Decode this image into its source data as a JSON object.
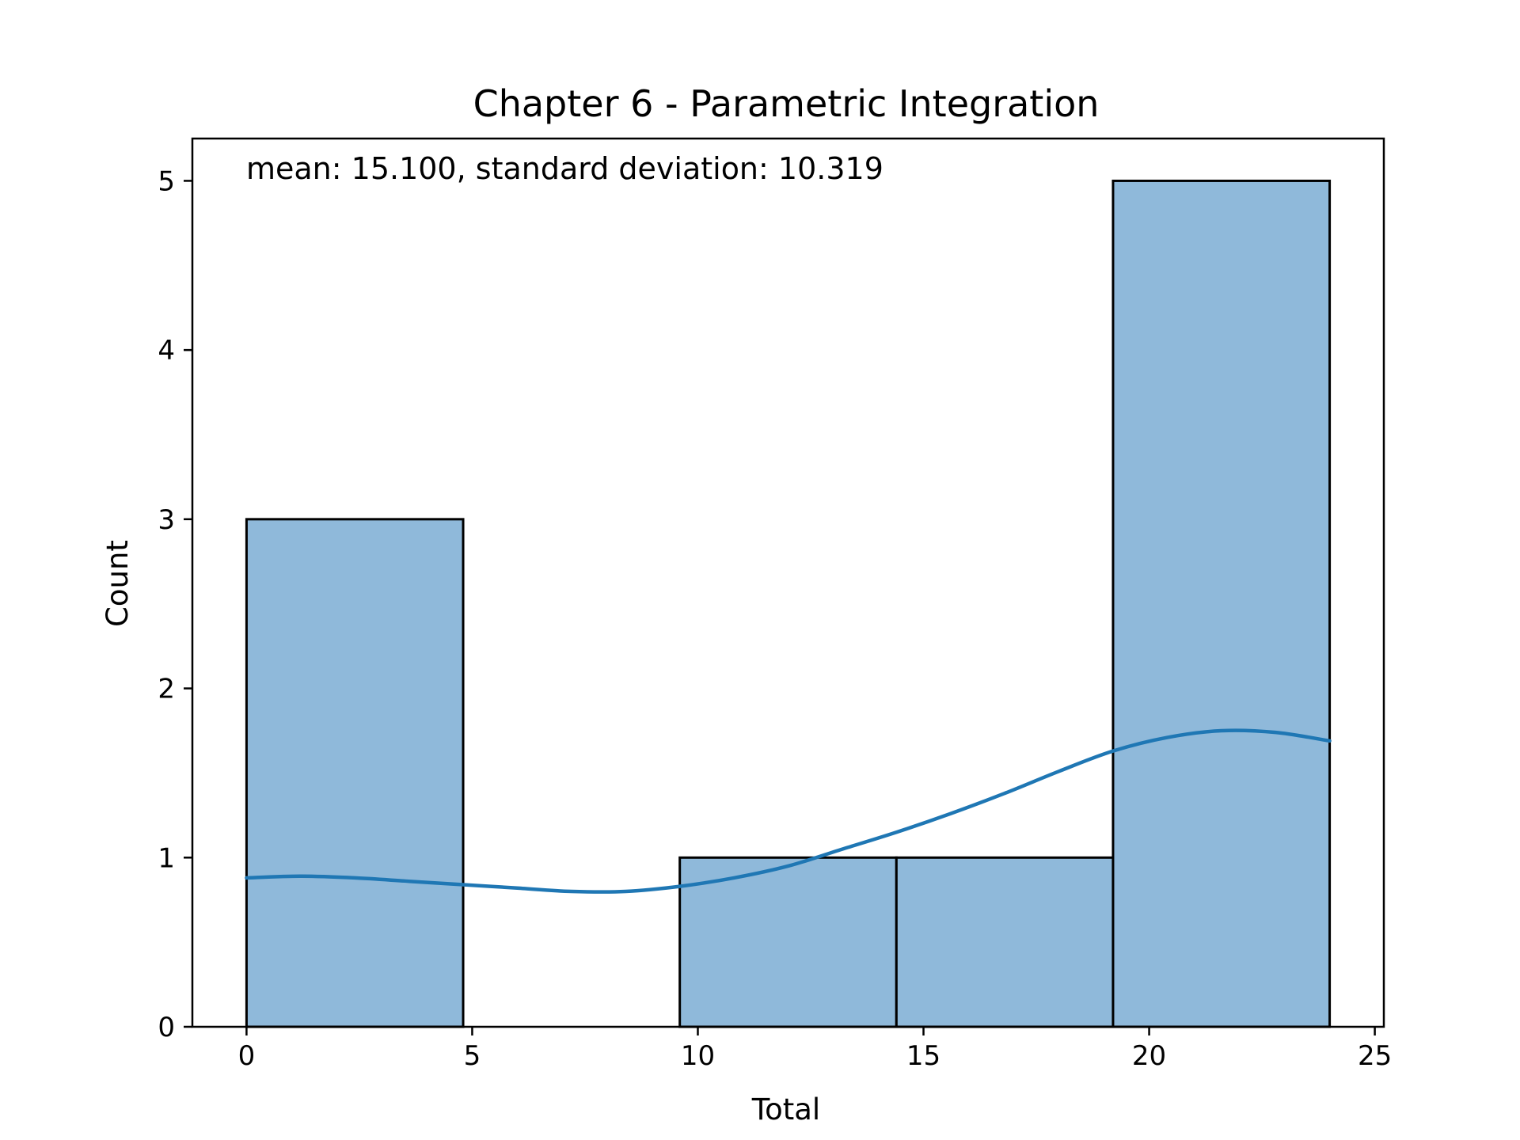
{
  "chart_data": {
    "type": "bar",
    "subtype": "histogram",
    "title": "Chapter 6 - Parametric Integration",
    "xlabel": "Total",
    "ylabel": "Count",
    "annotation": "mean: 15.100, standard deviation: 10.319",
    "xlim": [
      -1.2,
      25.2
    ],
    "ylim": [
      0,
      5.25
    ],
    "xticks": [
      0,
      5,
      10,
      15,
      20,
      25
    ],
    "yticks": [
      0,
      1,
      2,
      3,
      4,
      5
    ],
    "bins": [
      {
        "start": 0.0,
        "end": 4.8,
        "count": 3
      },
      {
        "start": 4.8,
        "end": 9.6,
        "count": 0
      },
      {
        "start": 9.6,
        "end": 14.4,
        "count": 1
      },
      {
        "start": 14.4,
        "end": 19.2,
        "count": 1
      },
      {
        "start": 19.2,
        "end": 24.0,
        "count": 5
      }
    ],
    "kde": {
      "x": [
        0,
        1.2,
        2.4,
        3.6,
        4.8,
        6.0,
        7.2,
        8.4,
        9.6,
        10.8,
        12.0,
        13.2,
        14.4,
        15.6,
        16.8,
        18.0,
        19.2,
        20.4,
        21.6,
        22.8,
        24.0
      ],
      "y": [
        0.88,
        0.89,
        0.88,
        0.86,
        0.84,
        0.82,
        0.8,
        0.8,
        0.83,
        0.88,
        0.95,
        1.05,
        1.15,
        1.26,
        1.38,
        1.51,
        1.63,
        1.71,
        1.75,
        1.74,
        1.69
      ]
    },
    "grid": false,
    "legend": "none",
    "colors": {
      "bar_fill": "#8fb9da",
      "bar_edge": "#000000",
      "kde_line": "#1f77b4"
    }
  }
}
